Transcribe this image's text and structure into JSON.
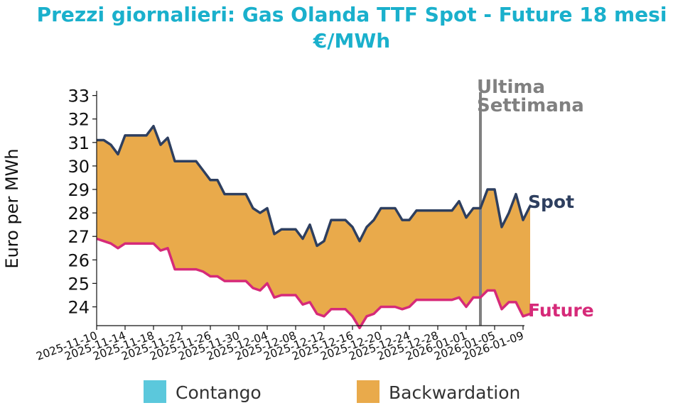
{
  "chart_data": {
    "type": "area",
    "title": "Prezzi giornalieri: Gas Olanda TTF Spot - Future 18 mesi",
    "subtitle": "€/MWh",
    "ylabel": "Euro per MWh",
    "xlabel": "",
    "ylim": [
      23.2,
      33.2
    ],
    "yticks": [
      24,
      25,
      26,
      27,
      28,
      29,
      30,
      31,
      32,
      33
    ],
    "xlim": [
      "2025-11-10",
      "2026-01-09"
    ],
    "xticks": [
      "2025-11-10",
      "2025-11-14",
      "2025-11-18",
      "2025-11-22",
      "2025-11-26",
      "2025-11-30",
      "2025-12-04",
      "2025-12-08",
      "2025-12-12",
      "2025-12-16",
      "2025-12-20",
      "2025-12-24",
      "2025-12-28",
      "2026-01-01",
      "2026-01-05",
      "2026-01-09"
    ],
    "grid": false,
    "annotation": {
      "date": "2026-01-03",
      "line1": "Ultima",
      "line2": "Settimana",
      "color": "#808080"
    },
    "series": [
      {
        "name": "Spot",
        "color": "#2e3f5f",
        "points": [
          [
            "2025-11-10",
            31.1
          ],
          [
            "2025-11-11",
            31.1
          ],
          [
            "2025-11-12",
            30.9
          ],
          [
            "2025-11-13",
            30.5
          ],
          [
            "2025-11-14",
            31.3
          ],
          [
            "2025-11-17",
            31.3
          ],
          [
            "2025-11-18",
            31.7
          ],
          [
            "2025-11-19",
            30.9
          ],
          [
            "2025-11-20",
            31.2
          ],
          [
            "2025-11-21",
            30.2
          ],
          [
            "2025-11-24",
            30.2
          ],
          [
            "2025-11-25",
            29.8
          ],
          [
            "2025-11-26",
            29.4
          ],
          [
            "2025-11-27",
            29.4
          ],
          [
            "2025-11-28",
            28.8
          ],
          [
            "2025-12-01",
            28.8
          ],
          [
            "2025-12-02",
            28.2
          ],
          [
            "2025-12-03",
            28.0
          ],
          [
            "2025-12-04",
            28.2
          ],
          [
            "2025-12-05",
            27.1
          ],
          [
            "2025-12-06",
            27.3
          ],
          [
            "2025-12-08",
            27.3
          ],
          [
            "2025-12-09",
            26.9
          ],
          [
            "2025-12-10",
            27.5
          ],
          [
            "2025-12-11",
            26.6
          ],
          [
            "2025-12-12",
            26.8
          ],
          [
            "2025-12-13",
            27.7
          ],
          [
            "2025-12-15",
            27.7
          ],
          [
            "2025-12-16",
            27.4
          ],
          [
            "2025-12-17",
            26.8
          ],
          [
            "2025-12-18",
            27.4
          ],
          [
            "2025-12-19",
            27.7
          ],
          [
            "2025-12-20",
            28.2
          ],
          [
            "2025-12-22",
            28.2
          ],
          [
            "2025-12-23",
            27.7
          ],
          [
            "2025-12-24",
            27.7
          ],
          [
            "2025-12-25",
            28.1
          ],
          [
            "2025-12-30",
            28.1
          ],
          [
            "2025-12-31",
            28.5
          ],
          [
            "2026-01-01",
            27.8
          ],
          [
            "2026-01-02",
            28.2
          ],
          [
            "2026-01-03",
            28.2
          ],
          [
            "2026-01-04",
            29.0
          ],
          [
            "2026-01-05",
            29.0
          ],
          [
            "2026-01-06",
            27.4
          ],
          [
            "2026-01-07",
            28.0
          ],
          [
            "2026-01-08",
            28.8
          ],
          [
            "2026-01-09",
            27.7
          ],
          [
            "2026-01-10",
            28.3
          ]
        ]
      },
      {
        "name": "Future",
        "color": "#d62a79",
        "points": [
          [
            "2025-11-10",
            26.9
          ],
          [
            "2025-11-11",
            26.8
          ],
          [
            "2025-11-12",
            26.7
          ],
          [
            "2025-11-13",
            26.5
          ],
          [
            "2025-11-14",
            26.7
          ],
          [
            "2025-11-17",
            26.7
          ],
          [
            "2025-11-18",
            26.7
          ],
          [
            "2025-11-19",
            26.4
          ],
          [
            "2025-11-20",
            26.5
          ],
          [
            "2025-11-21",
            25.6
          ],
          [
            "2025-11-24",
            25.6
          ],
          [
            "2025-11-25",
            25.5
          ],
          [
            "2025-11-26",
            25.3
          ],
          [
            "2025-11-27",
            25.3
          ],
          [
            "2025-11-28",
            25.1
          ],
          [
            "2025-12-01",
            25.1
          ],
          [
            "2025-12-02",
            24.8
          ],
          [
            "2025-12-03",
            24.7
          ],
          [
            "2025-12-04",
            25.0
          ],
          [
            "2025-12-05",
            24.4
          ],
          [
            "2025-12-06",
            24.5
          ],
          [
            "2025-12-08",
            24.5
          ],
          [
            "2025-12-09",
            24.1
          ],
          [
            "2025-12-10",
            24.2
          ],
          [
            "2025-12-11",
            23.7
          ],
          [
            "2025-12-12",
            23.6
          ],
          [
            "2025-12-13",
            23.9
          ],
          [
            "2025-12-15",
            23.9
          ],
          [
            "2025-12-16",
            23.6
          ],
          [
            "2025-12-17",
            23.1
          ],
          [
            "2025-12-18",
            23.6
          ],
          [
            "2025-12-19",
            23.7
          ],
          [
            "2025-12-20",
            24.0
          ],
          [
            "2025-12-22",
            24.0
          ],
          [
            "2025-12-23",
            23.9
          ],
          [
            "2025-12-24",
            24.0
          ],
          [
            "2025-12-25",
            24.3
          ],
          [
            "2025-12-30",
            24.3
          ],
          [
            "2025-12-31",
            24.4
          ],
          [
            "2026-01-01",
            24.0
          ],
          [
            "2026-01-02",
            24.4
          ],
          [
            "2026-01-03",
            24.4
          ],
          [
            "2026-01-04",
            24.7
          ],
          [
            "2026-01-05",
            24.7
          ],
          [
            "2026-01-06",
            23.9
          ],
          [
            "2026-01-07",
            24.2
          ],
          [
            "2026-01-08",
            24.2
          ],
          [
            "2026-01-09",
            23.6
          ],
          [
            "2026-01-10",
            23.7
          ]
        ]
      }
    ],
    "fill": {
      "between": [
        "Spot",
        "Future"
      ],
      "color": "#e9aa4b"
    },
    "legend": {
      "placement": "bottom",
      "items": [
        {
          "label": "Contango",
          "color": "#5bc8dc"
        },
        {
          "label": "Backwardation",
          "color": "#e9aa4b"
        }
      ]
    }
  }
}
